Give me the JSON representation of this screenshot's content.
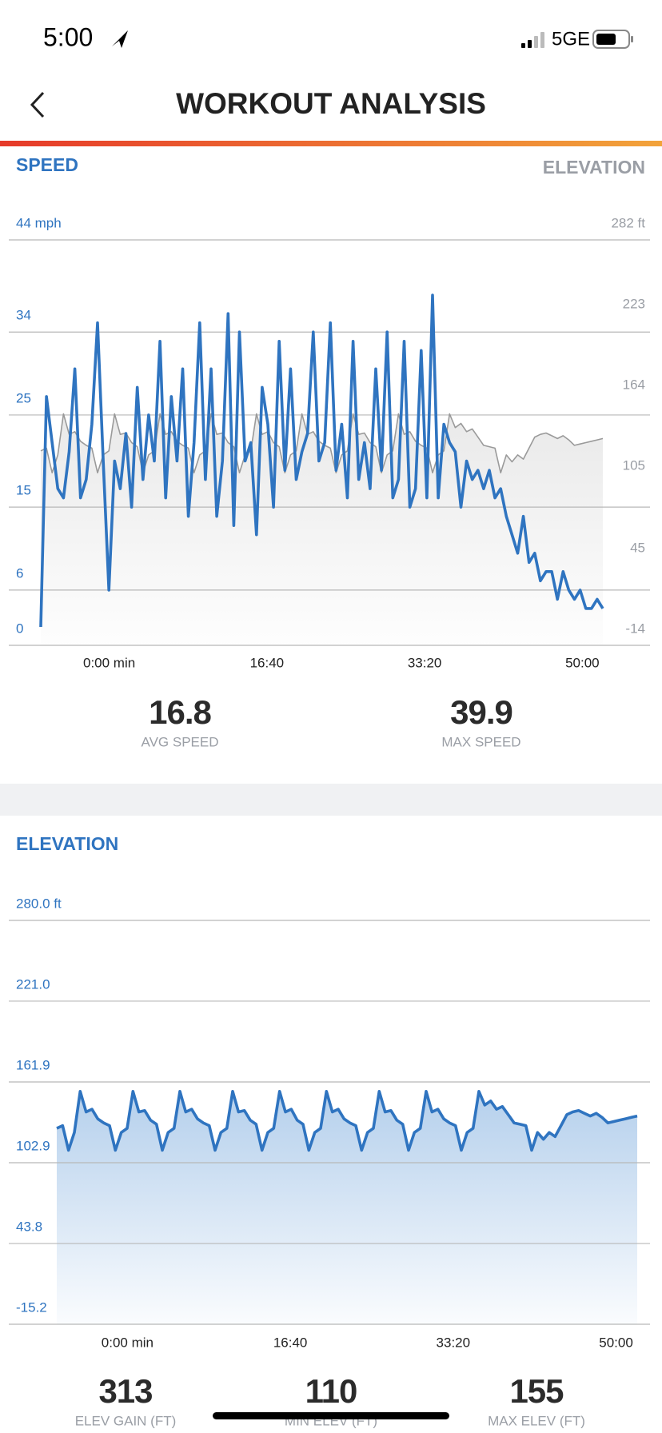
{
  "status_bar": {
    "time": "5:00",
    "network": "5GE"
  },
  "header": {
    "title": "WORKOUT ANALYSIS"
  },
  "chart_data": [
    {
      "type": "line",
      "ylabel": "SPEED",
      "y2label": "ELEVATION",
      "x": [
        -434,
        -398,
        -362,
        -326,
        -290,
        -254,
        -218,
        -182,
        -146,
        -110,
        -74,
        -38,
        -2,
        34,
        70,
        106,
        142,
        178,
        214,
        250,
        286,
        322,
        358,
        394,
        430,
        466,
        502,
        538,
        574,
        610,
        646,
        682,
        718,
        754,
        790,
        826,
        862,
        898,
        934,
        970,
        1006,
        1042,
        1078,
        1114,
        1150,
        1186,
        1222,
        1258,
        1294,
        1330,
        1366,
        1402,
        1438,
        1474,
        1510,
        1546,
        1582,
        1618,
        1654,
        1690,
        1726,
        1762,
        1798,
        1834,
        1870,
        1906,
        1942,
        1978,
        2014,
        2050,
        2086,
        2122,
        2158,
        2194,
        2230,
        2266,
        2302,
        2338,
        2374,
        2410,
        2446,
        2482,
        2518,
        2554,
        2590,
        2626,
        2662,
        2698,
        2734,
        2770,
        2806,
        2842,
        2878,
        2914,
        2950,
        2986,
        3022,
        3058,
        3094,
        3130
      ],
      "xlim": [
        -434,
        3130
      ],
      "xticks": [
        {
          "value": 0,
          "label": "0:00 min"
        },
        {
          "value": 1000,
          "label": "16:40"
        },
        {
          "value": 2000,
          "label": "33:20"
        },
        {
          "value": 3000,
          "label": "50:00"
        }
      ],
      "ylim": [
        0,
        44
      ],
      "yticks": [
        {
          "value": 44,
          "label": "44 mph"
        },
        34,
        25,
        15,
        6,
        0
      ],
      "y2lim": [
        -14,
        282
      ],
      "y2ticks": [
        {
          "value": 282,
          "label": "282 ft"
        },
        223,
        164,
        105,
        45,
        -14
      ],
      "grid": true,
      "series": [
        {
          "color": "#9a9a9a",
          "fill": "#e2e2e2",
          "axis": "y2",
          "values": [
            128,
            130,
            112,
            125,
            155,
            140,
            142,
            135,
            132,
            130,
            112,
            125,
            128,
            155,
            140,
            141,
            134,
            131,
            112,
            125,
            128,
            155,
            140,
            142,
            135,
            132,
            130,
            112,
            125,
            128,
            155,
            140,
            141,
            134,
            131,
            112,
            125,
            128,
            155,
            140,
            142,
            134,
            131,
            112,
            125,
            128,
            155,
            140,
            142,
            135,
            132,
            130,
            112,
            125,
            128,
            155,
            140,
            141,
            134,
            131,
            112,
            125,
            128,
            155,
            140,
            142,
            135,
            132,
            130,
            112,
            125,
            128,
            155,
            145,
            148,
            142,
            144,
            138,
            132,
            131,
            130,
            112,
            125,
            120,
            125,
            122,
            130,
            138,
            140,
            141,
            139,
            137,
            139,
            136,
            132,
            133,
            134,
            135,
            136,
            137
          ]
        },
        {
          "color": "#2f74c0",
          "values": [
            2,
            27,
            22,
            17,
            16,
            21,
            30,
            16,
            18,
            24,
            35,
            20,
            6,
            20,
            17,
            23,
            15,
            28,
            18,
            25,
            20,
            33,
            16,
            27,
            20,
            30,
            14,
            22,
            35,
            18,
            30,
            14,
            20,
            36,
            13,
            34,
            20,
            22,
            12,
            28,
            24,
            15,
            33,
            19,
            30,
            18,
            21,
            23,
            34,
            20,
            22,
            35,
            19,
            24,
            16,
            33,
            18,
            22,
            17,
            30,
            19,
            34,
            16,
            18,
            33,
            15,
            17,
            32,
            16,
            38,
            16,
            24,
            22,
            21,
            15,
            20,
            18,
            19,
            17,
            19,
            16,
            17,
            14,
            12,
            10,
            14,
            9,
            10,
            7,
            8,
            8,
            5,
            8,
            6,
            5,
            6,
            4,
            4,
            5,
            4
          ]
        }
      ]
    },
    {
      "type": "area",
      "title": "ELEVATION",
      "x": [
        -434,
        -398,
        -362,
        -326,
        -290,
        -254,
        -218,
        -182,
        -146,
        -110,
        -74,
        -38,
        -2,
        34,
        70,
        106,
        142,
        178,
        214,
        250,
        286,
        322,
        358,
        394,
        430,
        466,
        502,
        538,
        574,
        610,
        646,
        682,
        718,
        754,
        790,
        826,
        862,
        898,
        934,
        970,
        1006,
        1042,
        1078,
        1114,
        1150,
        1186,
        1222,
        1258,
        1294,
        1330,
        1366,
        1402,
        1438,
        1474,
        1510,
        1546,
        1582,
        1618,
        1654,
        1690,
        1726,
        1762,
        1798,
        1834,
        1870,
        1906,
        1942,
        1978,
        2014,
        2050,
        2086,
        2122,
        2158,
        2194,
        2230,
        2266,
        2302,
        2338,
        2374,
        2410,
        2446,
        2482,
        2518,
        2554,
        2590,
        2626,
        2662,
        2698,
        2734,
        2770,
        2806,
        2842,
        2878,
        2914,
        2950,
        2986,
        3022,
        3058,
        3094,
        3130
      ],
      "xlim": [
        -434,
        3130
      ],
      "xticks": [
        {
          "value": 0,
          "label": "0:00 min"
        },
        {
          "value": 1000,
          "label": "16:40"
        },
        {
          "value": 2000,
          "label": "33:20"
        },
        {
          "value": 3000,
          "label": "50:00"
        }
      ],
      "ylim": [
        -15.2,
        280
      ],
      "yticks": [
        {
          "value": 280,
          "label": "280.0 ft"
        },
        {
          "value": 221,
          "label": "221.0"
        },
        161.9,
        102.9,
        43.8,
        -15.2
      ],
      "grid": true,
      "series": [
        {
          "color": "#2f74c0",
          "fill": "#9cc0e6",
          "values": [
            128,
            130,
            112,
            125,
            155,
            140,
            142,
            135,
            132,
            130,
            112,
            125,
            128,
            155,
            140,
            141,
            134,
            131,
            112,
            125,
            128,
            155,
            140,
            142,
            135,
            132,
            130,
            112,
            125,
            128,
            155,
            140,
            141,
            134,
            131,
            112,
            125,
            128,
            155,
            140,
            142,
            134,
            131,
            112,
            125,
            128,
            155,
            140,
            142,
            135,
            132,
            130,
            112,
            125,
            128,
            155,
            140,
            141,
            134,
            131,
            112,
            125,
            128,
            155,
            140,
            142,
            135,
            132,
            130,
            112,
            125,
            128,
            155,
            145,
            148,
            142,
            144,
            138,
            132,
            131,
            130,
            112,
            125,
            120,
            125,
            122,
            130,
            138,
            140,
            141,
            139,
            137,
            139,
            136,
            132,
            133,
            134,
            135,
            136,
            137
          ]
        }
      ]
    }
  ],
  "speed_stats": [
    {
      "value": 16.8,
      "label": "AVG SPEED"
    },
    {
      "value": 39.9,
      "label": "MAX SPEED"
    }
  ],
  "elevation_stats": [
    {
      "value": 313,
      "label": "ELEV GAIN (FT)"
    },
    {
      "value": 110,
      "label": "MIN ELEV (FT)"
    },
    {
      "value": 155,
      "label": "MAX ELEV (FT)"
    }
  ]
}
